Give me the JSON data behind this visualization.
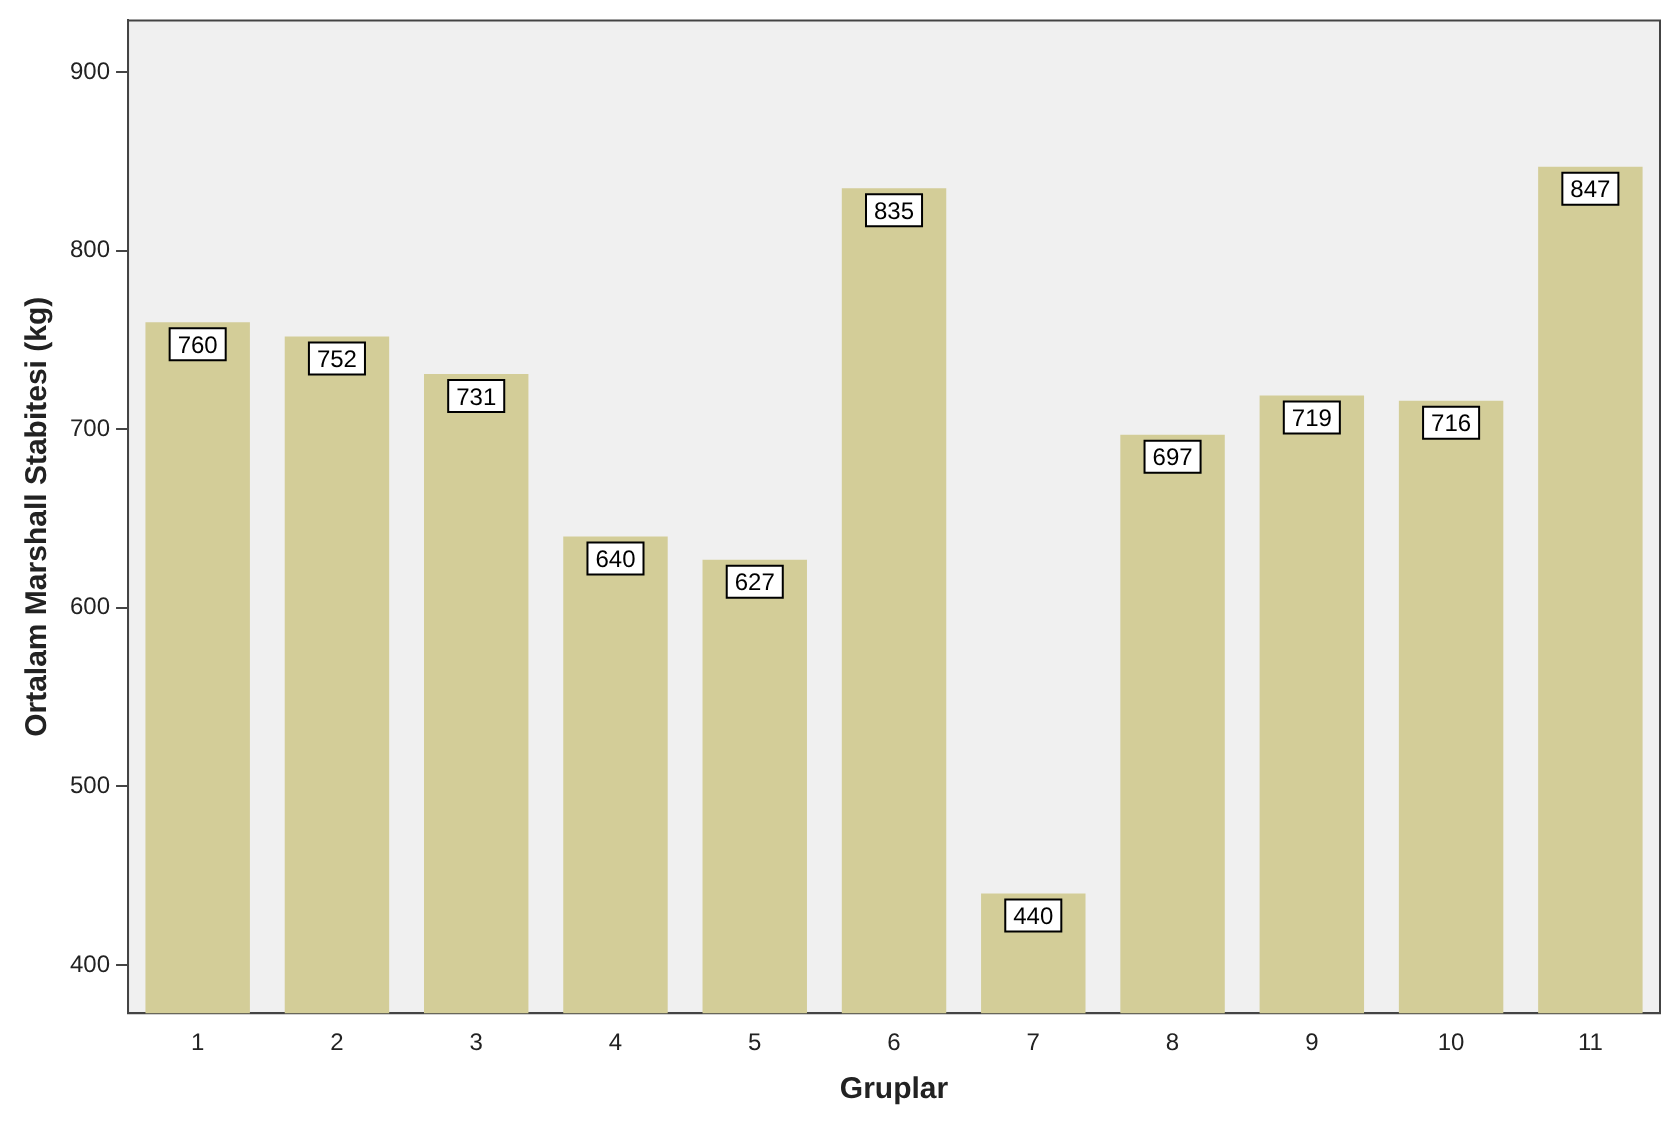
{
  "chart_data": {
    "type": "bar",
    "xlabel": "Gruplar",
    "ylabel": "Ortalam Marshall Stabitesi (kg)",
    "categories": [
      "1",
      "2",
      "3",
      "4",
      "5",
      "6",
      "7",
      "8",
      "9",
      "10",
      "11"
    ],
    "series": [
      {
        "color": "#d3cd98",
        "values": [
          760,
          752,
          731,
          640,
          627,
          835,
          440,
          697,
          719,
          716,
          847
        ]
      }
    ],
    "ylim": [
      373,
      929
    ],
    "yticks": [
      400,
      500,
      600,
      700,
      800,
      900
    ],
    "grid": false,
    "legend": false,
    "data_labels": true
  }
}
